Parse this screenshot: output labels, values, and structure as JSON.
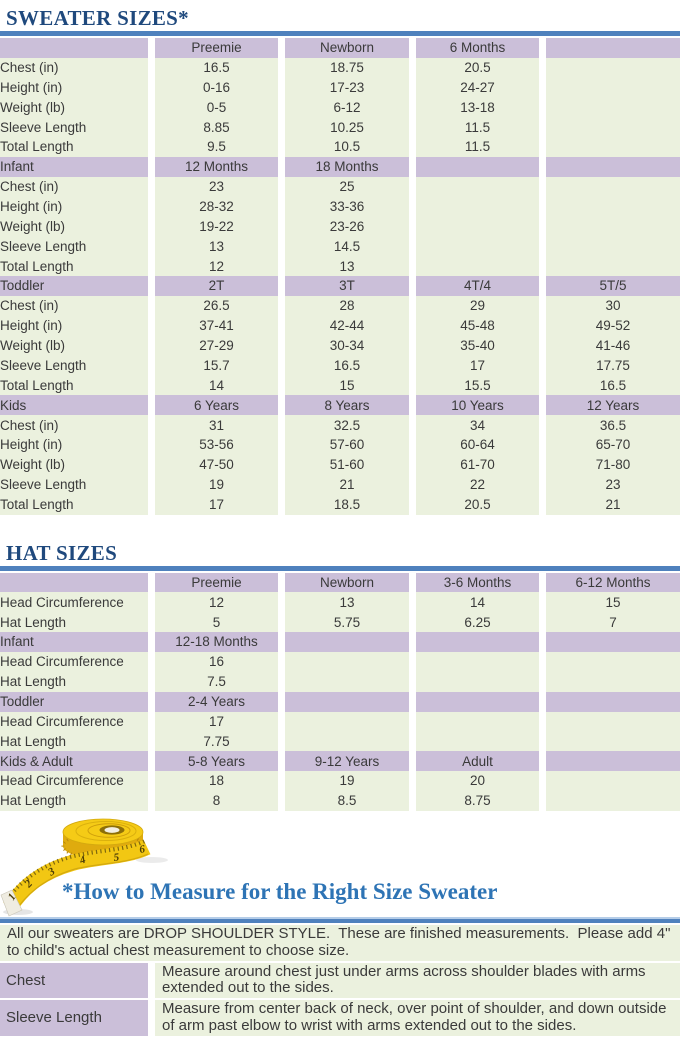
{
  "colors": {
    "purple": "#cbbfd9",
    "green": "#ebf1de",
    "navy": "#1f497d",
    "rule": "#4f81bd",
    "measure_blue": "#2e74b5",
    "text": "#3a3a3a"
  },
  "sweater_table": {
    "title": "SWEATER SIZES*",
    "row_labels": [
      "Chest (in)",
      "Height (in)",
      "Weight (lb)",
      "Sleeve Length",
      "Total Length"
    ],
    "sections": [
      {
        "label": "",
        "sizes": [
          "Preemie",
          "Newborn",
          "6 Months",
          ""
        ],
        "rows": [
          [
            "16.5",
            "18.75",
            "20.5",
            ""
          ],
          [
            "0-16",
            "17-23",
            "24-27",
            ""
          ],
          [
            "0-5",
            "6-12",
            "13-18",
            ""
          ],
          [
            "8.85",
            "10.25",
            "11.5",
            ""
          ],
          [
            "9.5",
            "10.5",
            "11.5",
            ""
          ]
        ]
      },
      {
        "label": "Infant",
        "sizes": [
          "12 Months",
          "18 Months",
          "",
          ""
        ],
        "rows": [
          [
            "23",
            "25",
            "",
            ""
          ],
          [
            "28-32",
            "33-36",
            "",
            ""
          ],
          [
            "19-22",
            "23-26",
            "",
            ""
          ],
          [
            "13",
            "14.5",
            "",
            ""
          ],
          [
            "12",
            "13",
            "",
            ""
          ]
        ]
      },
      {
        "label": "Toddler",
        "sizes": [
          "2T",
          "3T",
          "4T/4",
          "5T/5"
        ],
        "rows": [
          [
            "26.5",
            "28",
            "29",
            "30"
          ],
          [
            "37-41",
            "42-44",
            "45-48",
            "49-52"
          ],
          [
            "27-29",
            "30-34",
            "35-40",
            "41-46"
          ],
          [
            "15.7",
            "16.5",
            "17",
            "17.75"
          ],
          [
            "14",
            "15",
            "15.5",
            "16.5"
          ]
        ]
      },
      {
        "label": "Kids",
        "sizes": [
          "6 Years",
          "8 Years",
          "10 Years",
          "12 Years"
        ],
        "rows": [
          [
            "31",
            "32.5",
            "34",
            "36.5"
          ],
          [
            "53-56",
            "57-60",
            "60-64",
            "65-70"
          ],
          [
            "47-50",
            "51-60",
            "61-70",
            "71-80"
          ],
          [
            "19",
            "21",
            "22",
            "23"
          ],
          [
            "17",
            "18.5",
            "20.5",
            "21"
          ]
        ]
      }
    ]
  },
  "hat_table": {
    "title": "HAT SIZES",
    "row_labels": [
      "Head Circumference",
      "Hat Length"
    ],
    "sections": [
      {
        "label": "",
        "sizes": [
          "Preemie",
          "Newborn",
          "3-6 Months",
          "6-12 Months"
        ],
        "rows": [
          [
            "12",
            "13",
            "14",
            "15"
          ],
          [
            "5",
            "5.75",
            "6.25",
            "7"
          ]
        ]
      },
      {
        "label": "Infant",
        "sizes": [
          "12-18 Months",
          "",
          "",
          ""
        ],
        "rows": [
          [
            "16",
            "",
            "",
            ""
          ],
          [
            "7.5",
            "",
            "",
            ""
          ]
        ]
      },
      {
        "label": "Toddler",
        "sizes": [
          "2-4 Years",
          "",
          "",
          ""
        ],
        "rows": [
          [
            "17",
            "",
            "",
            ""
          ],
          [
            "7.75",
            "",
            "",
            ""
          ]
        ]
      },
      {
        "label": "Kids & Adult",
        "sizes": [
          "5-8 Years",
          "9-12 Years",
          "Adult",
          ""
        ],
        "rows": [
          [
            "18",
            "19",
            "20",
            ""
          ],
          [
            "8",
            "8.5",
            "8.75",
            ""
          ]
        ]
      }
    ]
  },
  "measure_section": {
    "title": "*How to Measure for the Right Size Sweater",
    "intro": "All our sweaters are DROP SHOULDER STYLE.  These are finished measurements.  Please add 4\" to child's actual chest measurement to choose size.",
    "rows": [
      {
        "label": "Chest",
        "text": "Measure around chest just under arms across shoulder blades with arms extended out to the sides."
      },
      {
        "label": "Sleeve Length",
        "text": "Measure from center back of neck, over point of shoulder, and down outside of arm past elbow to wrist with arms extended out to the sides."
      }
    ],
    "tape_numbers": [
      "1",
      "2",
      "3",
      "4",
      "5",
      "6"
    ]
  }
}
